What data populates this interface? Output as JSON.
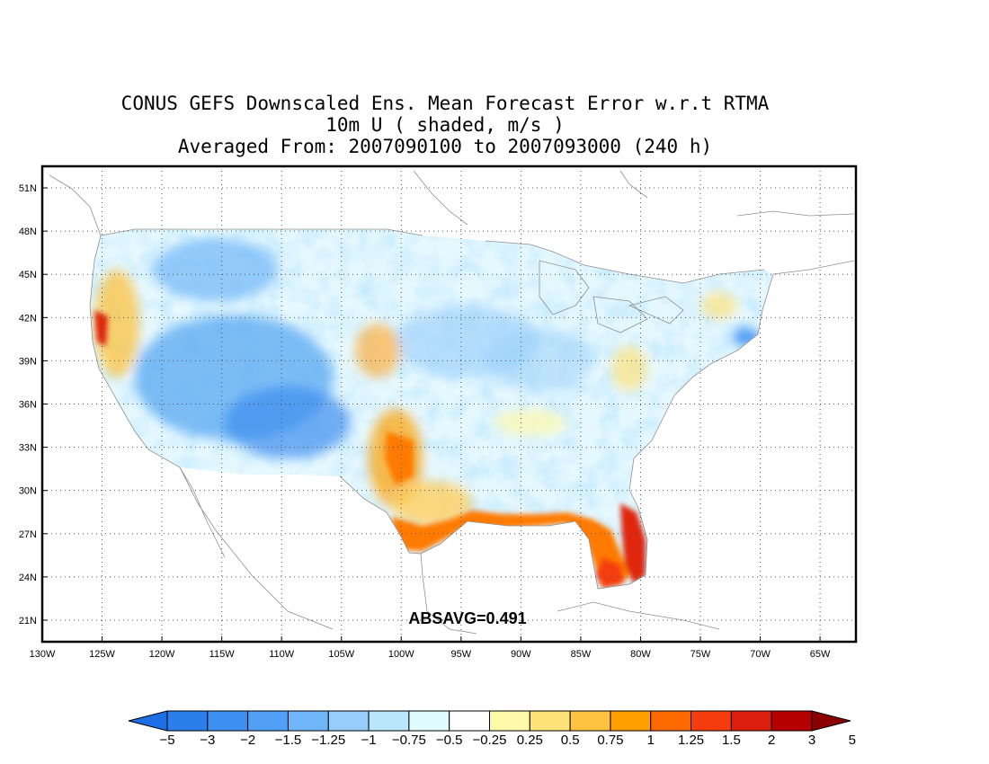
{
  "title": {
    "line1": "CONUS GEFS Downscaled Ens. Mean Forecast Error w.r.t RTMA",
    "line2": "10m U ( shaded, m/s )",
    "line3": "Averaged From: 2007090100 to 2007093000 (240 h)"
  },
  "map": {
    "lon_range": [
      -130,
      -62
    ],
    "lat_range": [
      19.5,
      52.5
    ],
    "lon_ticks": [
      "130W",
      "125W",
      "120W",
      "115W",
      "110W",
      "105W",
      "100W",
      "95W",
      "90W",
      "85W",
      "80W",
      "75W",
      "70W",
      "65W"
    ],
    "lat_ticks": [
      "51N",
      "48N",
      "45N",
      "42N",
      "39N",
      "36N",
      "33N",
      "30N",
      "27N",
      "24N",
      "21N"
    ],
    "grid_style": "dotted",
    "absavg_label": "ABSAVG=0.491"
  },
  "colorbar": {
    "labels": [
      "−5",
      "−3",
      "−2",
      "−1.5",
      "−1.25",
      "−1",
      "−0.75",
      "−0.5",
      "−0.25",
      "0.25",
      "0.5",
      "0.75",
      "1",
      "1.25",
      "1.5",
      "2",
      "3",
      "5"
    ],
    "colors": [
      "#1e6ee6",
      "#2b7eeb",
      "#3c8ff0",
      "#51a0f5",
      "#6fb6f8",
      "#96cdfa",
      "#b8e6fb",
      "#e0fbff",
      "#ffffff",
      "#fffaaa",
      "#ffe37a",
      "#ffc33f",
      "#ff9f00",
      "#ff6a00",
      "#f53c0f",
      "#dc1e0f",
      "#b40000",
      "#8c0000"
    ]
  }
}
